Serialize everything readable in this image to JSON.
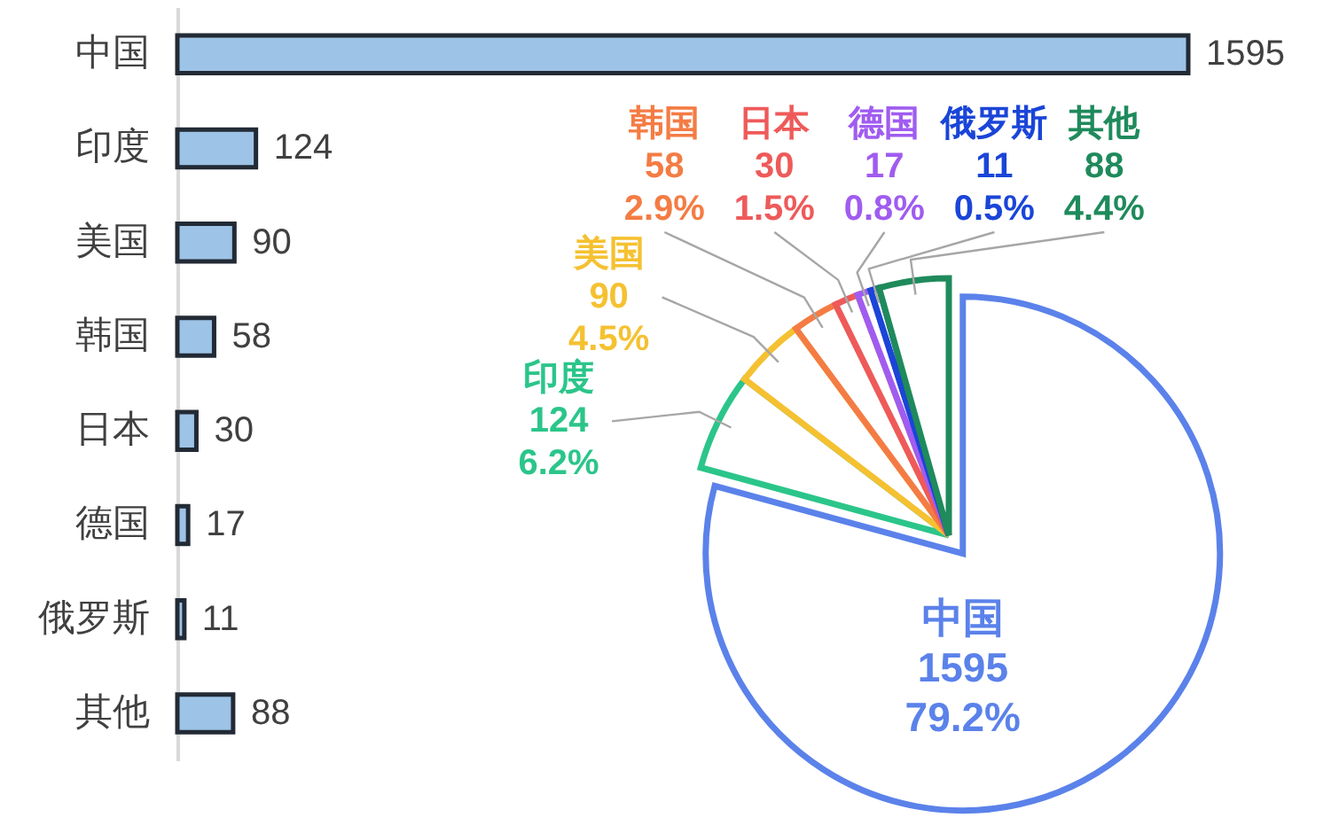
{
  "chart_data": [
    {
      "type": "bar",
      "orientation": "horizontal",
      "categories": [
        "中国",
        "印度",
        "美国",
        "韩国",
        "日本",
        "德国",
        "俄罗斯",
        "其他"
      ],
      "values": [
        1595,
        124,
        90,
        58,
        30,
        17,
        11,
        88
      ],
      "color": "#9dc3e6",
      "data_labels": true
    },
    {
      "type": "pie",
      "categories": [
        "中国",
        "印度",
        "美国",
        "韩国",
        "日本",
        "德国",
        "俄罗斯",
        "其他"
      ],
      "values": [
        1595,
        124,
        90,
        58,
        30,
        17,
        11,
        88
      ],
      "colors": [
        "#5b82ea",
        "#2bc58a",
        "#f5c131",
        "#f47c44",
        "#ee5a5a",
        "#a05cf0",
        "#1a45d8",
        "#1f8a5c"
      ],
      "value_labels": [
        "1595\n79.2%",
        "124\n6.2%",
        "90\n4.5%",
        "58\n2.9%",
        "30\n1.5%",
        "17\n0.8%",
        "11\n0.5%",
        "88\n4.4%"
      ]
    }
  ]
}
